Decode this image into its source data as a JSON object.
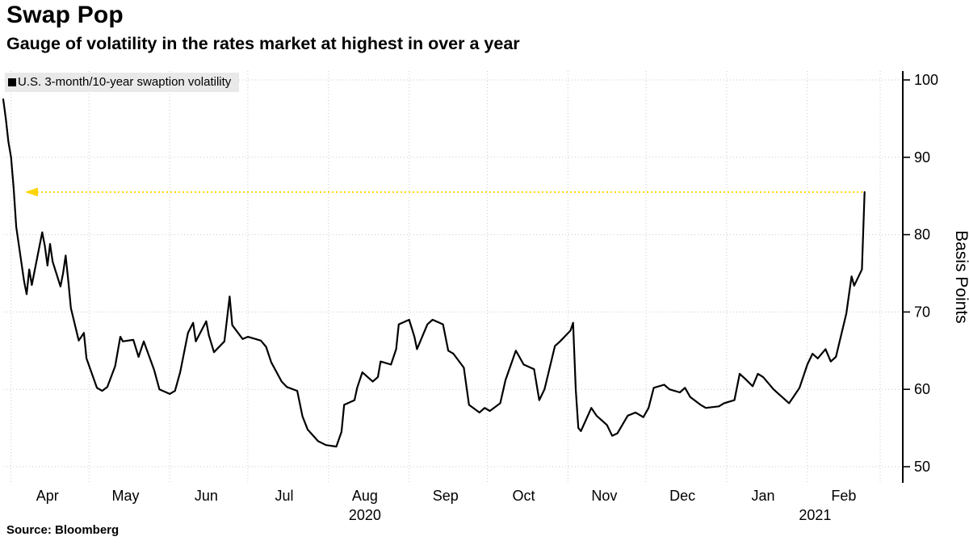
{
  "footer": {
    "source": "Source: Bloomberg"
  },
  "chart_data": {
    "type": "line",
    "title": "Swap Pop",
    "subtitle": "Gauge of volatility in the rates market at highest in over a year",
    "series_name": "U.S. 3-month/10-year swaption volatility",
    "ylabel": "Basis Points",
    "ylim": [
      50,
      100
    ],
    "yticks": [
      50,
      60,
      70,
      80,
      90,
      100
    ],
    "x_start": "2020-03-29",
    "x_end": "2021-03-01",
    "month_labels": [
      {
        "label": "Apr",
        "date": "2020-04-15"
      },
      {
        "label": "May",
        "date": "2020-05-15"
      },
      {
        "label": "Jun",
        "date": "2020-06-15"
      },
      {
        "label": "Jul",
        "date": "2020-07-15"
      },
      {
        "label": "Aug",
        "date": "2020-08-15"
      },
      {
        "label": "Sep",
        "date": "2020-09-15"
      },
      {
        "label": "Oct",
        "date": "2020-10-15"
      },
      {
        "label": "Nov",
        "date": "2020-11-15"
      },
      {
        "label": "Dec",
        "date": "2020-12-15"
      },
      {
        "label": "Jan",
        "date": "2021-01-15"
      },
      {
        "label": "Feb",
        "date": "2021-02-15"
      }
    ],
    "year_labels": [
      {
        "label": "2020",
        "date": "2020-08-15"
      },
      {
        "label": "2021",
        "date": "2021-02-04"
      }
    ],
    "grid": true,
    "grid_color": "#c9c9c9",
    "line_color": "#000000",
    "reference_line": {
      "value": 85.5,
      "color": "#ffd500",
      "style": "dotted",
      "arrow": "left"
    },
    "points": [
      [
        "2020-03-29",
        97.5
      ],
      [
        "2020-03-30",
        95.0
      ],
      [
        "2020-03-31",
        92.0
      ],
      [
        "2020-04-01",
        90.0
      ],
      [
        "2020-04-02",
        86.0
      ],
      [
        "2020-04-03",
        81.0
      ],
      [
        "2020-04-06",
        74.0
      ],
      [
        "2020-04-07",
        72.3
      ],
      [
        "2020-04-08",
        75.5
      ],
      [
        "2020-04-09",
        73.5
      ],
      [
        "2020-04-13",
        80.3
      ],
      [
        "2020-04-14",
        78.5
      ],
      [
        "2020-04-15",
        76.0
      ],
      [
        "2020-04-16",
        78.8
      ],
      [
        "2020-04-17",
        76.5
      ],
      [
        "2020-04-20",
        73.3
      ],
      [
        "2020-04-21",
        75.0
      ],
      [
        "2020-04-22",
        77.3
      ],
      [
        "2020-04-23",
        74.0
      ],
      [
        "2020-04-24",
        70.5
      ],
      [
        "2020-04-27",
        66.3
      ],
      [
        "2020-04-28",
        66.8
      ],
      [
        "2020-04-29",
        67.3
      ],
      [
        "2020-04-30",
        64.0
      ],
      [
        "2020-05-04",
        60.2
      ],
      [
        "2020-05-06",
        59.8
      ],
      [
        "2020-05-08",
        60.3
      ],
      [
        "2020-05-11",
        63.0
      ],
      [
        "2020-05-13",
        66.8
      ],
      [
        "2020-05-14",
        66.2
      ],
      [
        "2020-05-18",
        66.4
      ],
      [
        "2020-05-20",
        64.2
      ],
      [
        "2020-05-22",
        66.2
      ],
      [
        "2020-05-26",
        62.5
      ],
      [
        "2020-05-28",
        60.0
      ],
      [
        "2020-06-01",
        59.4
      ],
      [
        "2020-06-03",
        59.8
      ],
      [
        "2020-06-05",
        62.2
      ],
      [
        "2020-06-08",
        67.3
      ],
      [
        "2020-06-10",
        68.6
      ],
      [
        "2020-06-11",
        66.2
      ],
      [
        "2020-06-15",
        68.8
      ],
      [
        "2020-06-16",
        67.0
      ],
      [
        "2020-06-18",
        64.8
      ],
      [
        "2020-06-22",
        66.2
      ],
      [
        "2020-06-24",
        72.0
      ],
      [
        "2020-06-25",
        68.3
      ],
      [
        "2020-06-29",
        66.5
      ],
      [
        "2020-07-01",
        66.8
      ],
      [
        "2020-07-06",
        66.3
      ],
      [
        "2020-07-08",
        65.5
      ],
      [
        "2020-07-10",
        63.5
      ],
      [
        "2020-07-14",
        61.0
      ],
      [
        "2020-07-16",
        60.3
      ],
      [
        "2020-07-20",
        59.8
      ],
      [
        "2020-07-22",
        56.5
      ],
      [
        "2020-07-24",
        54.8
      ],
      [
        "2020-07-28",
        53.3
      ],
      [
        "2020-07-31",
        52.8
      ],
      [
        "2020-08-04",
        52.6
      ],
      [
        "2020-08-06",
        54.5
      ],
      [
        "2020-08-07",
        58.0
      ],
      [
        "2020-08-11",
        58.6
      ],
      [
        "2020-08-12",
        60.2
      ],
      [
        "2020-08-14",
        62.2
      ],
      [
        "2020-08-18",
        61.0
      ],
      [
        "2020-08-20",
        61.6
      ],
      [
        "2020-08-21",
        63.6
      ],
      [
        "2020-08-25",
        63.2
      ],
      [
        "2020-08-27",
        65.2
      ],
      [
        "2020-08-28",
        68.4
      ],
      [
        "2020-09-01",
        69.0
      ],
      [
        "2020-09-03",
        66.8
      ],
      [
        "2020-09-04",
        65.2
      ],
      [
        "2020-09-08",
        68.4
      ],
      [
        "2020-09-10",
        69.0
      ],
      [
        "2020-09-14",
        68.4
      ],
      [
        "2020-09-16",
        65.0
      ],
      [
        "2020-09-18",
        64.6
      ],
      [
        "2020-09-22",
        62.8
      ],
      [
        "2020-09-24",
        58.0
      ],
      [
        "2020-09-28",
        57.0
      ],
      [
        "2020-09-30",
        57.6
      ],
      [
        "2020-10-02",
        57.2
      ],
      [
        "2020-10-06",
        58.2
      ],
      [
        "2020-10-08",
        61.2
      ],
      [
        "2020-10-12",
        65.0
      ],
      [
        "2020-10-13",
        64.4
      ],
      [
        "2020-10-15",
        63.2
      ],
      [
        "2020-10-19",
        62.6
      ],
      [
        "2020-10-21",
        58.6
      ],
      [
        "2020-10-23",
        60.0
      ],
      [
        "2020-10-27",
        65.6
      ],
      [
        "2020-10-29",
        66.2
      ],
      [
        "2020-11-02",
        67.6
      ],
      [
        "2020-11-03",
        68.6
      ],
      [
        "2020-11-04",
        60.0
      ],
      [
        "2020-11-05",
        55.0
      ],
      [
        "2020-11-06",
        54.6
      ],
      [
        "2020-11-10",
        57.6
      ],
      [
        "2020-11-12",
        56.6
      ],
      [
        "2020-11-16",
        55.4
      ],
      [
        "2020-11-18",
        54.0
      ],
      [
        "2020-11-20",
        54.3
      ],
      [
        "2020-11-24",
        56.6
      ],
      [
        "2020-11-27",
        57.0
      ],
      [
        "2020-11-30",
        56.4
      ],
      [
        "2020-12-02",
        57.6
      ],
      [
        "2020-12-04",
        60.2
      ],
      [
        "2020-12-08",
        60.6
      ],
      [
        "2020-12-10",
        60.0
      ],
      [
        "2020-12-14",
        59.6
      ],
      [
        "2020-12-16",
        60.2
      ],
      [
        "2020-12-18",
        59.0
      ],
      [
        "2020-12-22",
        58.0
      ],
      [
        "2020-12-24",
        57.6
      ],
      [
        "2020-12-29",
        57.8
      ],
      [
        "2020-12-31",
        58.2
      ],
      [
        "2021-01-04",
        58.6
      ],
      [
        "2021-01-06",
        62.0
      ],
      [
        "2021-01-08",
        61.4
      ],
      [
        "2021-01-11",
        60.4
      ],
      [
        "2021-01-13",
        62.0
      ],
      [
        "2021-01-15",
        61.6
      ],
      [
        "2021-01-19",
        60.0
      ],
      [
        "2021-01-21",
        59.4
      ],
      [
        "2021-01-25",
        58.2
      ],
      [
        "2021-01-27",
        59.2
      ],
      [
        "2021-01-29",
        60.2
      ],
      [
        "2021-02-01",
        63.2
      ],
      [
        "2021-02-03",
        64.6
      ],
      [
        "2021-02-05",
        64.0
      ],
      [
        "2021-02-08",
        65.2
      ],
      [
        "2021-02-10",
        63.6
      ],
      [
        "2021-02-12",
        64.2
      ],
      [
        "2021-02-16",
        69.8
      ],
      [
        "2021-02-17",
        72.2
      ],
      [
        "2021-02-18",
        74.6
      ],
      [
        "2021-02-19",
        73.4
      ],
      [
        "2021-02-22",
        75.5
      ],
      [
        "2021-02-23",
        85.5
      ]
    ]
  }
}
